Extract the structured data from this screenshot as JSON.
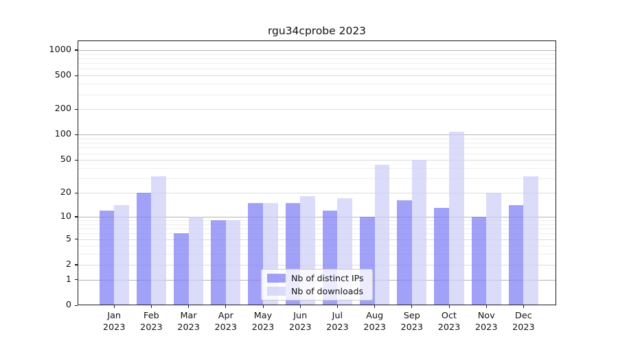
{
  "chart_data": {
    "type": "bar",
    "title": "rgu34cprobe 2023",
    "categories": [
      "Jan",
      "Feb",
      "Mar",
      "Apr",
      "May",
      "Jun",
      "Jul",
      "Aug",
      "Sep",
      "Oct",
      "Nov",
      "Dec"
    ],
    "category_year": "2023",
    "series": [
      {
        "name": "Nb of distinct IPs",
        "color": "#7d7df5",
        "alpha": 0.72,
        "values": [
          12,
          20,
          6,
          9,
          15,
          15,
          12,
          10,
          16,
          13,
          10,
          14
        ]
      },
      {
        "name": "Nb of downloads",
        "color": "#cdcdf8",
        "alpha": 0.72,
        "values": [
          14,
          32,
          10,
          9,
          15,
          18,
          17,
          44,
          50,
          109,
          20,
          32
        ]
      }
    ],
    "yscale": "log1p",
    "yticks": [
      0,
      1,
      2,
      5,
      10,
      20,
      50,
      100,
      200,
      500,
      1000
    ],
    "ylim": [
      0,
      1300
    ],
    "xlabel": "",
    "ylabel": "",
    "grid": "on",
    "legend_position": "lower center",
    "grid_colors": {
      "decade": "#b5b5b5",
      "major": "#dbdbdb",
      "minor": "#ededed"
    }
  }
}
